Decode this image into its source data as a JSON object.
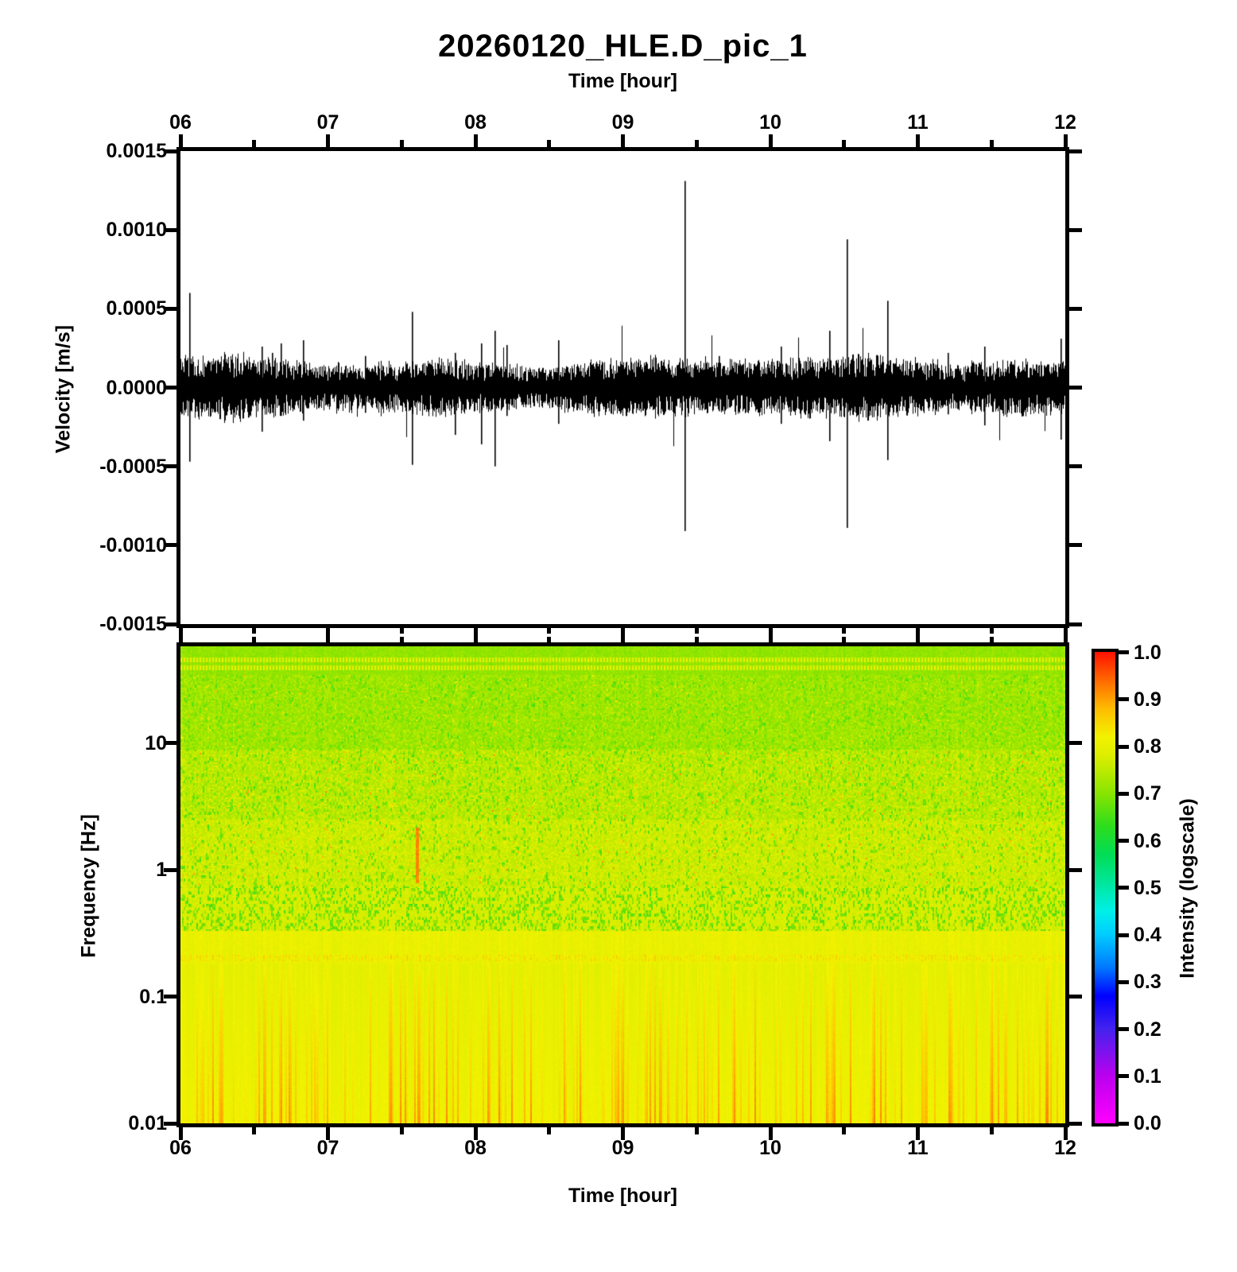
{
  "title": "20260120_HLE.D_pic_1",
  "top_axis": {
    "label": "Time [hour]",
    "tick_labels": [
      "06",
      "07",
      "08",
      "09",
      "10",
      "11",
      "12"
    ],
    "tick_hours": [
      6,
      7,
      8,
      9,
      10,
      11,
      12
    ],
    "minor_tick_hours": [
      6.5,
      7.5,
      8.5,
      9.5,
      10.5,
      11.5
    ]
  },
  "bottom_axis": {
    "label": "Time [hour]",
    "tick_labels": [
      "06",
      "07",
      "08",
      "09",
      "10",
      "11",
      "12"
    ],
    "tick_hours": [
      6,
      7,
      8,
      9,
      10,
      11,
      12
    ],
    "minor_tick_hours": [
      6.5,
      7.5,
      8.5,
      9.5,
      10.5,
      11.5
    ]
  },
  "waveform_panel": {
    "ylabel": "Velocity [m/s]",
    "y_tick_labels": [
      "0.0015",
      "0.0010",
      "0.0005",
      "0.0000",
      "-0.0005",
      "-0.0010",
      "-0.0015"
    ],
    "y_tick_values": [
      0.0015,
      0.001,
      0.0005,
      0.0,
      -0.0005,
      -0.001,
      -0.0015
    ]
  },
  "spectrogram_panel": {
    "ylabel": "Frequency [Hz]",
    "y_tick_labels": [
      "10",
      "1",
      "0.1",
      "0.01"
    ],
    "y_tick_values": [
      10,
      1,
      0.1,
      0.01
    ]
  },
  "colorbar": {
    "label": "Intensity (logscale)",
    "tick_labels": [
      "1.0",
      "0.9",
      "0.8",
      "0.7",
      "0.6",
      "0.5",
      "0.4",
      "0.3",
      "0.2",
      "0.1",
      "0.0"
    ],
    "tick_values": [
      1.0,
      0.9,
      0.8,
      0.7,
      0.6,
      0.5,
      0.4,
      0.3,
      0.2,
      0.1,
      0.0
    ]
  },
  "chart_data": [
    {
      "type": "line",
      "title": "20260120_HLE.D_pic_1",
      "xlabel": "Time [hour]",
      "ylabel": "Velocity [m/s]",
      "x_range_hours": [
        6,
        12
      ],
      "ylim": [
        -0.0015,
        0.0015
      ],
      "series_color": "#000000",
      "description": "continuous seismic velocity trace: dense noise band with transient spikes",
      "noise_core_mps": 6e-05,
      "noise_hair_mps": 0.00016,
      "spikes": [
        {
          "t": 6.06,
          "max": 0.0006,
          "min": -0.00047
        },
        {
          "t": 6.55,
          "max": 0.00026,
          "min": -0.00028
        },
        {
          "t": 6.62,
          "max": 0.00022,
          "min": -0.00016
        },
        {
          "t": 6.68,
          "max": 0.00028,
          "min": -0.00018
        },
        {
          "t": 6.83,
          "max": 0.0003,
          "min": -0.00021
        },
        {
          "t": 7.25,
          "max": 0.0002,
          "min": -0.00016
        },
        {
          "t": 7.57,
          "max": 0.00048,
          "min": -0.00049
        },
        {
          "t": 7.86,
          "max": 0.00022,
          "min": -0.0003
        },
        {
          "t": 8.04,
          "max": 0.00028,
          "min": -0.00036
        },
        {
          "t": 8.13,
          "max": 0.00036,
          "min": -0.0005
        },
        {
          "t": 8.21,
          "max": 0.00027,
          "min": -0.00018
        },
        {
          "t": 8.56,
          "max": 0.0003,
          "min": -0.00023
        },
        {
          "t": 9.42,
          "max": 0.00131,
          "min": -0.00091
        },
        {
          "t": 9.65,
          "max": 0.0002,
          "min": -0.00015
        },
        {
          "t": 10.07,
          "max": 0.00026,
          "min": -0.00023
        },
        {
          "t": 10.4,
          "max": 0.00036,
          "min": -0.00034
        },
        {
          "t": 10.52,
          "max": 0.00094,
          "min": -0.00089
        },
        {
          "t": 10.79,
          "max": 0.00055,
          "min": -0.00046
        },
        {
          "t": 11.2,
          "max": 0.00022,
          "min": -0.00017
        },
        {
          "t": 11.45,
          "max": 0.00026,
          "min": -0.00024
        },
        {
          "t": 11.97,
          "max": 0.00031,
          "min": -0.00033
        }
      ]
    },
    {
      "type": "heatmap",
      "xlabel": "Time [hour]",
      "ylabel": "Frequency [Hz]",
      "x_range_hours": [
        6,
        12
      ],
      "y_range_hz": [
        0.01,
        58
      ],
      "y_scale": "log",
      "colorbar_label": "Intensity (logscale)",
      "colorbar_range": [
        0.0,
        1.0
      ],
      "colormap_stops": [
        [
          0.0,
          "#ff00ff"
        ],
        [
          0.1,
          "#bb00ee"
        ],
        [
          0.2,
          "#4422ee"
        ],
        [
          0.27,
          "#0000ff"
        ],
        [
          0.33,
          "#0077ff"
        ],
        [
          0.4,
          "#00ccff"
        ],
        [
          0.45,
          "#00f0e8"
        ],
        [
          0.5,
          "#00e8a8"
        ],
        [
          0.57,
          "#00dd55"
        ],
        [
          0.63,
          "#2ddd1d"
        ],
        [
          0.7,
          "#88e400"
        ],
        [
          0.78,
          "#ddee00"
        ],
        [
          0.82,
          "#f2f200"
        ],
        [
          0.88,
          "#ffbb00"
        ],
        [
          0.93,
          "#ff7700"
        ],
        [
          1.0,
          "#ff1100"
        ]
      ],
      "bands": [
        {
          "fmin": 0.01,
          "fmax": 0.18,
          "base": 0.79,
          "style": "stripes",
          "stripe_max": 0.11
        },
        {
          "fmin": 0.18,
          "fmax": 0.33,
          "base": 0.8,
          "style": "dot_row",
          "row_hz": 0.205,
          "boost": 0.045
        },
        {
          "fmin": 0.33,
          "fmax": 0.75,
          "base": 0.775,
          "style": "dark_dashes",
          "dash_prob": 0.3,
          "dash_depth": 0.13
        },
        {
          "fmin": 0.75,
          "fmax": 2.5,
          "base": 0.765,
          "style": "mixed",
          "dash_prob": 0.1,
          "dash_depth": 0.11,
          "speckle": 0.05,
          "hot_prob": 0.015
        },
        {
          "fmin": 2.5,
          "fmax": 9,
          "base": 0.748,
          "style": "mixed",
          "dash_prob": 0.13,
          "dash_depth": 0.09,
          "speckle": 0.06,
          "hot_prob": 0.03
        },
        {
          "fmin": 9,
          "fmax": 35,
          "base": 0.722,
          "style": "mixed",
          "dash_prob": 0.1,
          "dash_depth": 0.06,
          "speckle": 0.06,
          "hot_prob": 0.012
        },
        {
          "fmin": 35,
          "fmax": 58,
          "base": 0.71,
          "style": "dotted_lines",
          "lines_hz": [
            40,
            46
          ],
          "speckle": 0.03
        }
      ],
      "hot_streak": {
        "t": 7.6,
        "fmin": 0.8,
        "fmax": 2.2,
        "value": 0.92
      }
    }
  ]
}
